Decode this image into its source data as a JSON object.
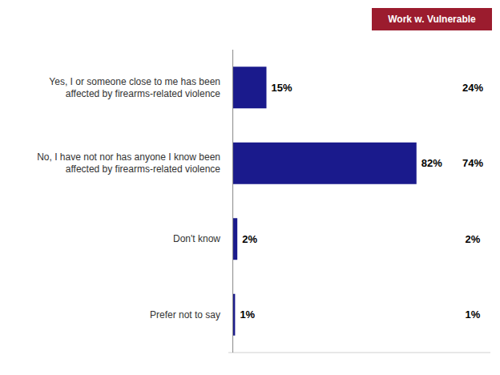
{
  "chart_data": {
    "type": "bar",
    "orientation": "horizontal",
    "categories": [
      "Yes, I or someone close to me has been\naffected by firearms-related violence",
      "No, I have not nor has anyone I know been\naffected by firearms-related violence",
      "Don't know",
      "Prefer not to say"
    ],
    "series": [
      {
        "values": [
          15,
          82,
          2,
          1
        ],
        "value_labels": [
          "15%",
          "82%",
          "2%",
          "1%"
        ],
        "color": "#1a1a8c"
      },
      {
        "name": "Work w. Vulnerable",
        "type": "text",
        "values": [
          24,
          74,
          2,
          1
        ],
        "value_labels": [
          "24%",
          "74%",
          "2%",
          "1%"
        ],
        "color": "#9b1c2e"
      }
    ],
    "xlim": [
      -2,
      115
    ],
    "xticks": [],
    "data_labels": true,
    "tick_labels": "y",
    "grid": false,
    "legend": "upper right"
  }
}
